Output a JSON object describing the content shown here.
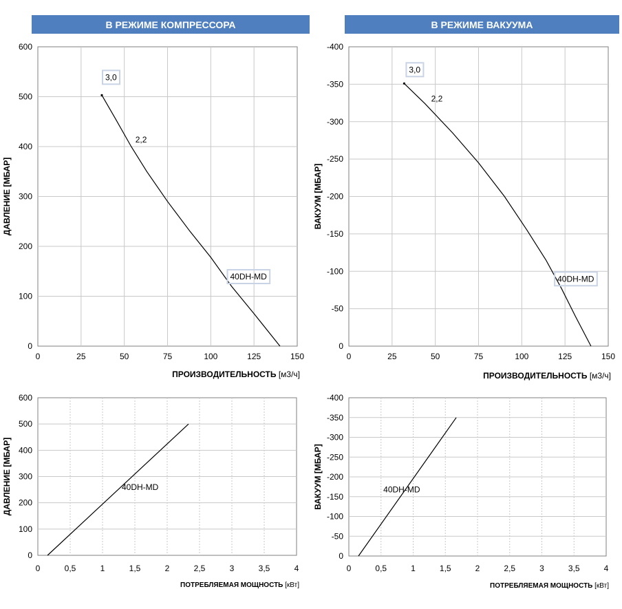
{
  "banners": {
    "compressor": "В РЕЖИМЕ КОМПРЕССОРА",
    "vacuum": "В РЕЖИМЕ ВАКУУМА"
  },
  "chart_data": [
    {
      "type": "line",
      "ylabel": "ДАВЛЕНИЕ [МБАР]",
      "xlabel": "ПРОИЗВОДИТЕЛЬНОСТЬ",
      "xunit": "[м3/ч]",
      "xlim": [
        0,
        150
      ],
      "ylim": [
        0,
        600
      ],
      "xticks": [
        "0",
        "25",
        "50",
        "75",
        "100",
        "125",
        "150"
      ],
      "yticks": [
        "0",
        "100",
        "200",
        "300",
        "400",
        "500",
        "600"
      ],
      "series": [
        {
          "name": "40DH-MD",
          "x": [
            37,
            45,
            54,
            63,
            75,
            88,
            100,
            112,
            125,
            140
          ],
          "y": [
            503,
            455,
            400,
            350,
            290,
            230,
            178,
            120,
            65,
            0
          ]
        }
      ],
      "annotations": [
        {
          "text": "3,0",
          "x": 37,
          "y": 503
        },
        {
          "text": "2,2",
          "x": 54,
          "y": 400
        },
        {
          "text": "40DH-MD",
          "x": 112,
          "y": 120
        }
      ],
      "grid": true
    },
    {
      "type": "line",
      "ylabel": "ВАКУУМ [МБАР]",
      "xlabel": "ПРОИЗВОДИТЕЛЬНОСТЬ",
      "xunit": "[м3/ч]",
      "xlim": [
        0,
        150
      ],
      "ylim": [
        0,
        -400
      ],
      "xticks": [
        "0",
        "25",
        "50",
        "75",
        "100",
        "125",
        "150"
      ],
      "yticks": [
        "0",
        "-50",
        "-100",
        "-150",
        "-200",
        "-250",
        "-300",
        "-350",
        "-400"
      ],
      "series": [
        {
          "name": "40DH-MD",
          "x": [
            32,
            44,
            60,
            75,
            90,
            103,
            114,
            123,
            131,
            140
          ],
          "y": [
            -351,
            -324,
            -285,
            -245,
            -200,
            -155,
            -115,
            -77,
            -40,
            0
          ]
        }
      ],
      "annotations": [
        {
          "text": "3,0",
          "x": 32,
          "y": -351
        },
        {
          "text": "2,2",
          "x": 44,
          "y": -324
        },
        {
          "text": "40DH-MD",
          "x": 123,
          "y": -77
        }
      ],
      "grid": true
    },
    {
      "type": "line",
      "ylabel": "ДАВЛЕНИЕ [МБАР]",
      "xlabel": "ПОТРЕБЛЯЕМАЯ МОЩНОСТЬ",
      "xunit": "[кВт]",
      "xlim": [
        0,
        4
      ],
      "ylim": [
        0,
        600
      ],
      "xticks": [
        "0",
        "0,5",
        "1",
        "1,5",
        "2",
        "2,5",
        "3",
        "3,5",
        "4"
      ],
      "yticks": [
        "0",
        "100",
        "200",
        "300",
        "400",
        "500",
        "600"
      ],
      "series": [
        {
          "name": "40DH-MD",
          "x": [
            0.15,
            2.33
          ],
          "y": [
            0,
            500
          ]
        }
      ],
      "annotations": [
        {
          "text": "40DH-MD",
          "x": 1.5,
          "y": 262
        }
      ],
      "grid": true
    },
    {
      "type": "line",
      "ylabel": "ВАКУУМ [МБАР]",
      "xlabel": "ПОТРЕБЛЯЕМАЯ МОЩНОСТЬ",
      "xunit": "[кВт]",
      "xlim": [
        0,
        4
      ],
      "ylim": [
        0,
        -400
      ],
      "xticks": [
        "0",
        "0,5",
        "1",
        "1,5",
        "2",
        "2,5",
        "3",
        "3,5",
        "4"
      ],
      "yticks": [
        "0",
        "-50",
        "-100",
        "-150",
        "-200",
        "-250",
        "-300",
        "-350",
        "-400"
      ],
      "series": [
        {
          "name": "40DH-MD",
          "x": [
            0.15,
            1.67
          ],
          "y": [
            0,
            -350
          ]
        }
      ],
      "annotations": [
        {
          "text": "40DH-MD",
          "x": 1.05,
          "y": -170
        }
      ],
      "grid": true
    }
  ]
}
